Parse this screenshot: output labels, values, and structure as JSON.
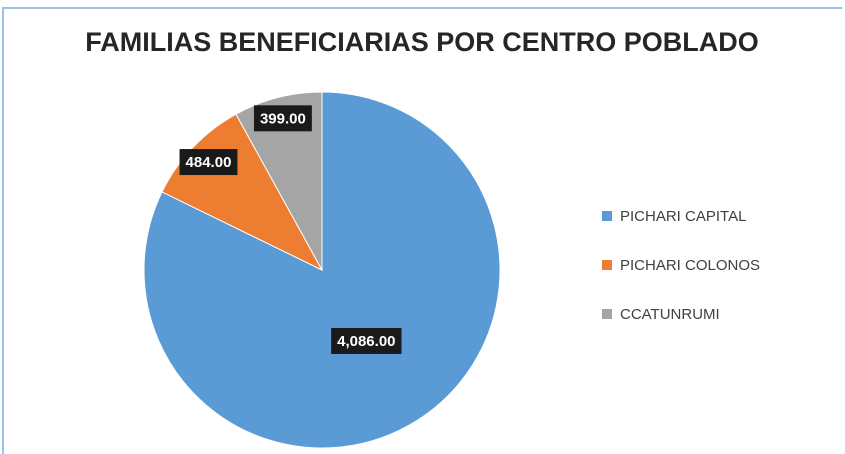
{
  "chart_data": {
    "type": "pie",
    "title": "FAMILIAS BENEFICIARIAS POR CENTRO POBLADO",
    "categories": [
      "PICHARI CAPITAL",
      "PICHARI COLONOS",
      "CCATUNRUMI"
    ],
    "values": [
      4086,
      484,
      399
    ],
    "value_labels": [
      "4,086.00",
      "484.00",
      "399.00"
    ],
    "colors": [
      "#5b9bd5",
      "#ed7d31",
      "#a5a5a5"
    ],
    "legend": "right"
  }
}
